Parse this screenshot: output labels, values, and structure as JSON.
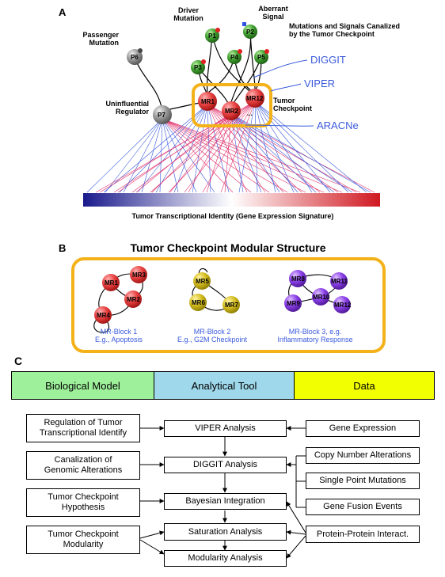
{
  "panel_a": {
    "label": "A",
    "passenger_label": "Passenger\nMutation",
    "driver_label": "Driver\nMutation",
    "aberrant_label": "Aberrant\nSignal",
    "canalized_label": "Mutations and Signals Canalized\nby the Tumor Checkpoint",
    "diggit": "DIGGIT",
    "viper": "VIPER",
    "aracne": "ARACNe",
    "uninfluential_label": "Uninfluential\nRegulator",
    "checkpoint_label": "Tumor\nCheckpoint",
    "gradient_caption": "Tumor Transcriptional Identity (Gene Expression Signature)",
    "nodes": {
      "p1": "P1",
      "p2": "P2",
      "p3": "P3",
      "p4": "P4",
      "p5": "P5",
      "p6": "P6",
      "p7": "P7",
      "mr1": "MR1",
      "mr2": "MR2",
      "mr12": "MR12",
      "dots": "..."
    }
  },
  "panel_b": {
    "label": "B",
    "title": "Tumor Checkpoint Modular Structure",
    "block1": {
      "nodes": [
        "MR1",
        "MR3",
        "MR2",
        "MR4"
      ],
      "caption1": "MR-Block 1",
      "caption2": "E.g., Apoptosis"
    },
    "block2": {
      "nodes": [
        "MR5",
        "MR6",
        "MR7"
      ],
      "caption1": "MR-Block 2",
      "caption2": "E.g., G2M Checkpoint"
    },
    "block3": {
      "nodes": [
        "MR8",
        "MR11",
        "MR10",
        "MR9",
        "MR12"
      ],
      "caption1": "MR-Block 3, e.g.",
      "caption2": "Inflammatory Response"
    }
  },
  "panel_c": {
    "label": "C",
    "headers": [
      "Biological Model",
      "Analytical Tool",
      "Data"
    ],
    "header_colors": [
      "#9ef09a",
      "#9fd8ea",
      "#f2ff00"
    ],
    "bio_model": [
      "Regulation of Tumor\nTranscriptional Identify",
      "Canalization of\nGenomic Alterations",
      "Tumor Checkpoint\nHypothesis",
      "Tumor Checkpoint\nModularity"
    ],
    "tools": [
      "VIPER Analysis",
      "DIGGIT Analysis",
      "Bayesian Integration",
      "Saturation Analysis",
      "Modularity Analysis"
    ],
    "data": [
      "Gene Expression",
      "Copy Number Alterations",
      "Single Point Mutations",
      "Gene Fusion Events",
      "Protein-Protein Interact."
    ]
  }
}
